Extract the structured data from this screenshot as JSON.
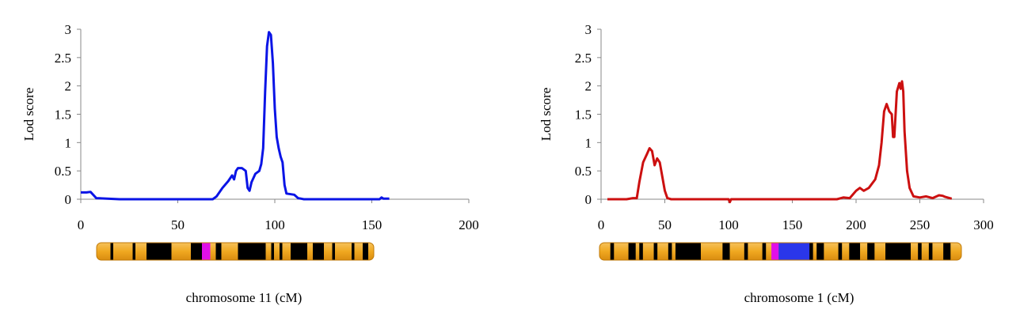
{
  "chart_data": [
    {
      "type": "line",
      "ylabel": "Lod score",
      "xlabel": "chromosome 11 (cM)",
      "xlim": [
        0,
        200
      ],
      "ylim": [
        0,
        3
      ],
      "xticks": [
        0,
        50,
        100,
        150,
        200
      ],
      "yticks": [
        0,
        0.5,
        1,
        1.5,
        2,
        2.5,
        3
      ],
      "ytick_labels": [
        "0",
        "0.5",
        "1",
        "1.5",
        "2",
        "2.5",
        "3"
      ],
      "grid": false,
      "series": [
        {
          "color": "#0a14e6",
          "x": [
            0,
            3,
            5,
            8,
            20,
            40,
            60,
            68,
            70,
            73,
            76,
            78,
            79,
            80,
            81,
            83,
            85,
            86,
            87,
            88,
            90,
            92,
            93,
            94,
            95,
            96,
            97,
            98,
            99,
            100,
            101,
            102,
            103,
            104,
            105,
            106,
            110,
            112,
            115,
            125,
            140,
            154,
            155,
            156,
            158,
            159
          ],
          "y": [
            0.12,
            0.12,
            0.13,
            0.02,
            0,
            0,
            0,
            0,
            0.05,
            0.2,
            0.32,
            0.42,
            0.35,
            0.5,
            0.55,
            0.55,
            0.5,
            0.2,
            0.15,
            0.3,
            0.45,
            0.5,
            0.62,
            0.9,
            1.9,
            2.7,
            2.95,
            2.9,
            2.4,
            1.6,
            1.1,
            0.9,
            0.75,
            0.65,
            0.25,
            0.1,
            0.08,
            0.02,
            0,
            0,
            0,
            0,
            0.03,
            0.01,
            0.01,
            0.01
          ]
        }
      ],
      "chromosome_bar": {
        "base_color": "#f0a820",
        "band_color": "#000000",
        "bands": [
          [
            5,
            6
          ],
          [
            13,
            14
          ],
          [
            18,
            27
          ],
          [
            34,
            38
          ],
          [
            43,
            45
          ],
          [
            51,
            61
          ],
          [
            63,
            64
          ],
          [
            66,
            67
          ],
          [
            70,
            76
          ],
          [
            78,
            82
          ],
          [
            85,
            86
          ],
          [
            92,
            93
          ],
          [
            96,
            98
          ]
        ],
        "highlights": [
          {
            "start": 38,
            "end": 41,
            "color": "#e010e8"
          }
        ]
      }
    },
    {
      "type": "line",
      "ylabel": "Lod score",
      "xlabel": "chromosome 1 (cM)",
      "xlim": [
        0,
        300
      ],
      "ylim": [
        0,
        3
      ],
      "xticks": [
        0,
        50,
        100,
        150,
        200,
        250,
        300
      ],
      "yticks": [
        0,
        0.5,
        1,
        1.5,
        2,
        2.5,
        3
      ],
      "ytick_labels": [
        "0",
        "0.5",
        "1",
        "1.5",
        "2",
        "2.5",
        "3"
      ],
      "grid": false,
      "series": [
        {
          "color": "#cc1010",
          "x": [
            5,
            20,
            25,
            28,
            30,
            33,
            36,
            38,
            40,
            42,
            44,
            46,
            48,
            50,
            52,
            55,
            70,
            95,
            100,
            101,
            102,
            110,
            150,
            185,
            190,
            195,
            200,
            203,
            206,
            210,
            215,
            218,
            220,
            222,
            224,
            226,
            228,
            229,
            230,
            232,
            234,
            235,
            236,
            237,
            238,
            240,
            242,
            245,
            250,
            255,
            260,
            265,
            268,
            270,
            275
          ],
          "y": [
            0,
            0,
            0.02,
            0.02,
            0.3,
            0.65,
            0.8,
            0.9,
            0.85,
            0.6,
            0.72,
            0.65,
            0.4,
            0.15,
            0.02,
            0,
            0,
            0,
            0,
            -0.05,
            0,
            0,
            0,
            0,
            0.03,
            0.02,
            0.15,
            0.2,
            0.15,
            0.2,
            0.35,
            0.6,
            1.0,
            1.55,
            1.68,
            1.55,
            1.5,
            1.1,
            1.1,
            1.9,
            2.05,
            1.95,
            2.08,
            1.9,
            1.2,
            0.5,
            0.2,
            0.05,
            0.03,
            0.05,
            0.02,
            0.07,
            0.06,
            0.04,
            0.01
          ]
        }
      ],
      "chromosome_bar": {
        "base_color": "#f0a820",
        "band_color": "#000000",
        "bands": [
          [
            3,
            4
          ],
          [
            8,
            10
          ],
          [
            11,
            12
          ],
          [
            15,
            16
          ],
          [
            19,
            20
          ],
          [
            21,
            28
          ],
          [
            34,
            36
          ],
          [
            40,
            41
          ],
          [
            45,
            46
          ],
          [
            55,
            56
          ],
          [
            58,
            59
          ],
          [
            60,
            62
          ],
          [
            66,
            67
          ],
          [
            69,
            72
          ],
          [
            74,
            76
          ],
          [
            79,
            86
          ],
          [
            88,
            89
          ],
          [
            91,
            92
          ],
          [
            95,
            97
          ]
        ],
        "highlights": [
          {
            "start": 47.5,
            "end": 49.5,
            "color": "#e010e8"
          },
          {
            "start": 49.5,
            "end": 58,
            "color": "#2a36ea"
          }
        ]
      }
    }
  ]
}
